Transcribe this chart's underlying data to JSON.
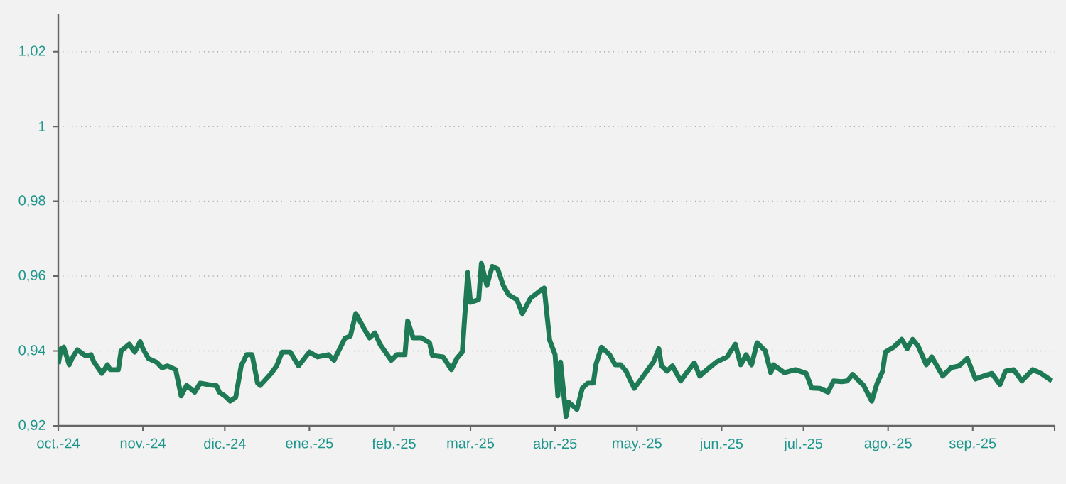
{
  "chart_data": {
    "type": "line",
    "x": [
      "2024-10-01",
      "2024-10-02",
      "2024-10-03",
      "2024-10-05",
      "2024-10-06",
      "2024-10-08",
      "2024-10-11",
      "2024-10-13",
      "2024-10-14",
      "2024-10-17",
      "2024-10-19",
      "2024-10-20",
      "2024-10-23",
      "2024-10-24",
      "2024-10-27",
      "2024-10-29",
      "2024-10-31",
      "2024-11-01",
      "2024-11-03",
      "2024-11-06",
      "2024-11-08",
      "2024-11-10",
      "2024-11-13",
      "2024-11-15",
      "2024-11-17",
      "2024-11-20",
      "2024-11-22",
      "2024-11-25",
      "2024-11-28",
      "2024-11-29",
      "2024-12-01",
      "2024-12-03",
      "2024-12-05",
      "2024-12-07",
      "2024-12-09",
      "2024-12-11",
      "2024-12-13",
      "2024-12-14",
      "2024-12-18",
      "2024-12-20",
      "2024-12-22",
      "2024-12-25",
      "2024-12-28",
      "2025-01-01",
      "2025-01-04",
      "2025-01-08",
      "2025-01-10",
      "2025-01-14",
      "2025-01-16",
      "2025-01-18",
      "2025-01-21",
      "2025-01-23",
      "2025-01-25",
      "2025-01-27",
      "2025-01-31",
      "2025-02-02",
      "2025-02-05",
      "2025-02-06",
      "2025-02-08",
      "2025-02-11",
      "2025-02-14",
      "2025-02-15",
      "2025-02-19",
      "2025-02-22",
      "2025-02-24",
      "2025-02-26",
      "2025-02-28",
      "2025-03-01",
      "2025-03-04",
      "2025-03-05",
      "2025-03-07",
      "2025-03-09",
      "2025-03-11",
      "2025-03-13",
      "2025-03-15",
      "2025-03-18",
      "2025-03-20",
      "2025-03-23",
      "2025-03-26",
      "2025-03-28",
      "2025-03-30",
      "2025-04-01",
      "2025-04-02",
      "2025-04-03",
      "2025-04-05",
      "2025-04-06",
      "2025-04-09",
      "2025-04-11",
      "2025-04-13",
      "2025-04-15",
      "2025-04-16",
      "2025-04-18",
      "2025-04-21",
      "2025-04-23",
      "2025-04-25",
      "2025-04-27",
      "2025-04-30",
      "2025-05-02",
      "2025-05-05",
      "2025-05-07",
      "2025-05-09",
      "2025-05-10",
      "2025-05-12",
      "2025-05-14",
      "2025-05-17",
      "2025-05-19",
      "2025-05-22",
      "2025-05-24",
      "2025-05-26",
      "2025-05-30",
      "2025-06-03",
      "2025-06-06",
      "2025-06-08",
      "2025-06-10",
      "2025-06-12",
      "2025-06-14",
      "2025-06-17",
      "2025-06-19",
      "2025-06-20",
      "2025-06-24",
      "2025-06-28",
      "2025-07-02",
      "2025-07-04",
      "2025-07-07",
      "2025-07-10",
      "2025-07-12",
      "2025-07-15",
      "2025-07-17",
      "2025-07-19",
      "2025-07-23",
      "2025-07-26",
      "2025-07-28",
      "2025-07-30",
      "2025-07-31",
      "2025-08-03",
      "2025-08-06",
      "2025-08-08",
      "2025-08-10",
      "2025-08-12",
      "2025-08-15",
      "2025-08-17",
      "2025-08-21",
      "2025-08-24",
      "2025-08-27",
      "2025-08-30",
      "2025-09-02",
      "2025-09-05",
      "2025-09-08",
      "2025-09-11",
      "2025-09-13",
      "2025-09-16",
      "2025-09-19",
      "2025-09-23",
      "2025-09-26",
      "2025-09-30"
    ],
    "series": [
      {
        "color": "#1e7a55",
        "values": [
          0.9365,
          0.9406,
          0.941,
          0.9363,
          0.938,
          0.9403,
          0.9387,
          0.939,
          0.9371,
          0.934,
          0.9363,
          0.935,
          0.935,
          0.94,
          0.9418,
          0.9397,
          0.9425,
          0.9406,
          0.938,
          0.937,
          0.9355,
          0.936,
          0.935,
          0.928,
          0.9308,
          0.929,
          0.9314,
          0.931,
          0.9307,
          0.929,
          0.928,
          0.9266,
          0.9276,
          0.936,
          0.939,
          0.939,
          0.9314,
          0.9308,
          0.934,
          0.936,
          0.9397,
          0.9397,
          0.936,
          0.9397,
          0.9384,
          0.939,
          0.9375,
          0.9434,
          0.944,
          0.95,
          0.946,
          0.9435,
          0.9448,
          0.9416,
          0.9375,
          0.939,
          0.939,
          0.948,
          0.9435,
          0.9435,
          0.9422,
          0.9388,
          0.9384,
          0.935,
          0.938,
          0.9397,
          0.9609,
          0.953,
          0.9537,
          0.9634,
          0.9575,
          0.9626,
          0.9619,
          0.9575,
          0.955,
          0.9537,
          0.95,
          0.9541,
          0.9558,
          0.9568,
          0.9429,
          0.939,
          0.928,
          0.937,
          0.9225,
          0.9263,
          0.9244,
          0.9301,
          0.9314,
          0.9314,
          0.9365,
          0.941,
          0.939,
          0.9363,
          0.9363,
          0.9346,
          0.93,
          0.932,
          0.935,
          0.937,
          0.9406,
          0.936,
          0.9346,
          0.936,
          0.932,
          0.934,
          0.9368,
          0.9333,
          0.9346,
          0.937,
          0.9384,
          0.9418,
          0.9363,
          0.939,
          0.9363,
          0.9422,
          0.94,
          0.9342,
          0.9363,
          0.9342,
          0.935,
          0.934,
          0.9301,
          0.93,
          0.929,
          0.932,
          0.9318,
          0.932,
          0.9337,
          0.9308,
          0.9266,
          0.9314,
          0.9346,
          0.9397,
          0.941,
          0.9431,
          0.9406,
          0.9431,
          0.9413,
          0.9363,
          0.9384,
          0.9333,
          0.9355,
          0.936,
          0.938,
          0.9325,
          0.9333,
          0.934,
          0.931,
          0.9346,
          0.935,
          0.932,
          0.935,
          0.934,
          0.932
        ]
      }
    ],
    "xlim": [
      "2024-10-01",
      "2025-10-01"
    ],
    "xticks": [
      {
        "value": "2024-10-01",
        "label": "oct.-24"
      },
      {
        "value": "2024-11-01",
        "label": "nov.-24"
      },
      {
        "value": "2024-12-01",
        "label": "dic.-24"
      },
      {
        "value": "2025-01-01",
        "label": "ene.-25"
      },
      {
        "value": "2025-02-01",
        "label": "feb.-25"
      },
      {
        "value": "2025-03-01",
        "label": "mar.-25"
      },
      {
        "value": "2025-04-01",
        "label": "abr.-25"
      },
      {
        "value": "2025-05-01",
        "label": "may.-25"
      },
      {
        "value": "2025-06-01",
        "label": "jun.-25"
      },
      {
        "value": "2025-07-01",
        "label": "jul.-25"
      },
      {
        "value": "2025-08-01",
        "label": "ago.-25"
      },
      {
        "value": "2025-09-01",
        "label": "sep.-25"
      },
      {
        "value": "2025-10-01",
        "label": null
      }
    ],
    "ylim": [
      0.92,
      1.03
    ],
    "yticks": [
      {
        "value": 0.92,
        "label": "0,92"
      },
      {
        "value": 0.94,
        "label": "0,94"
      },
      {
        "value": 0.96,
        "label": "0,96"
      },
      {
        "value": 0.98,
        "label": "0,98"
      },
      1,
      {
        "value": 1.02,
        "label": "1,02"
      }
    ],
    "grid": "y",
    "marker": "none",
    "line_style": "solid"
  }
}
